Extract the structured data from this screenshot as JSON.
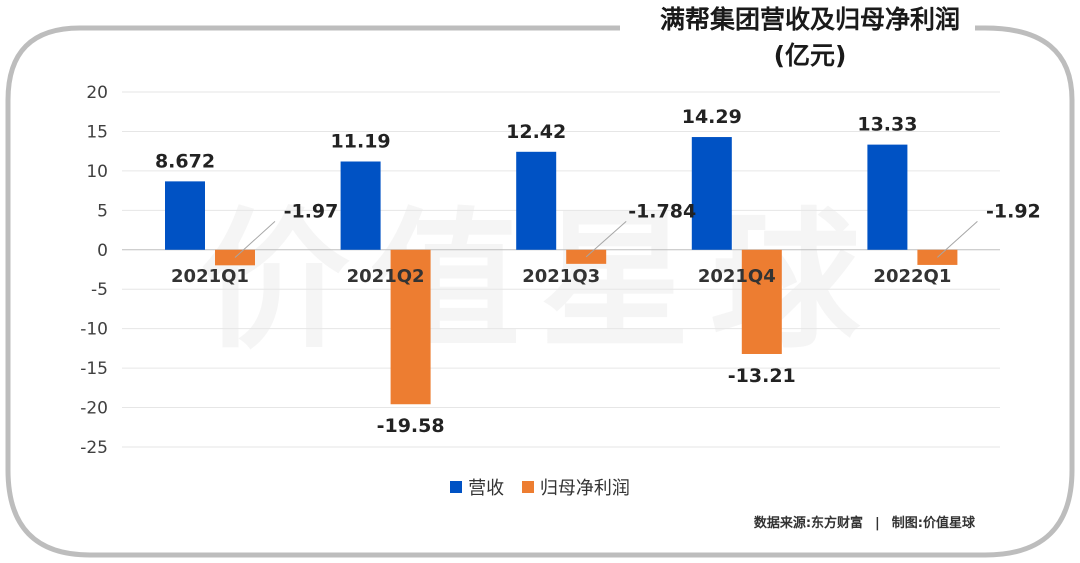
{
  "title_line1": "满帮集团营收及归母净利润",
  "title_line2": "(亿元)",
  "watermark": "价值星球",
  "colors": {
    "revenue": "#0052C4",
    "profit": "#ED7D31",
    "frame": "#bdbdbd"
  },
  "chart_data": {
    "type": "bar",
    "categories": [
      "2021Q1",
      "2021Q2",
      "2021Q3",
      "2021Q4",
      "2022Q1"
    ],
    "series": [
      {
        "name": "营收",
        "values": [
          8.672,
          11.19,
          12.42,
          14.29,
          13.33
        ],
        "labels": [
          "8.672",
          "11.19",
          "12.42",
          "14.29",
          "13.33"
        ]
      },
      {
        "name": "归母净利润",
        "values": [
          -1.97,
          -19.58,
          -1.784,
          -13.21,
          -1.92
        ],
        "labels": [
          "-1.97",
          "-19.58",
          "-1.784",
          "-13.21",
          "-1.92"
        ]
      }
    ],
    "yticks": [
      20,
      15,
      10,
      5,
      0,
      -5,
      -10,
      -15,
      -20,
      -25
    ],
    "ylim": [
      -25,
      20
    ],
    "grid": true,
    "legend_position": "bottom"
  },
  "source": {
    "data_label": "数据来源:东方财富",
    "separator": "|",
    "maker_label": "制图:价值星球"
  }
}
